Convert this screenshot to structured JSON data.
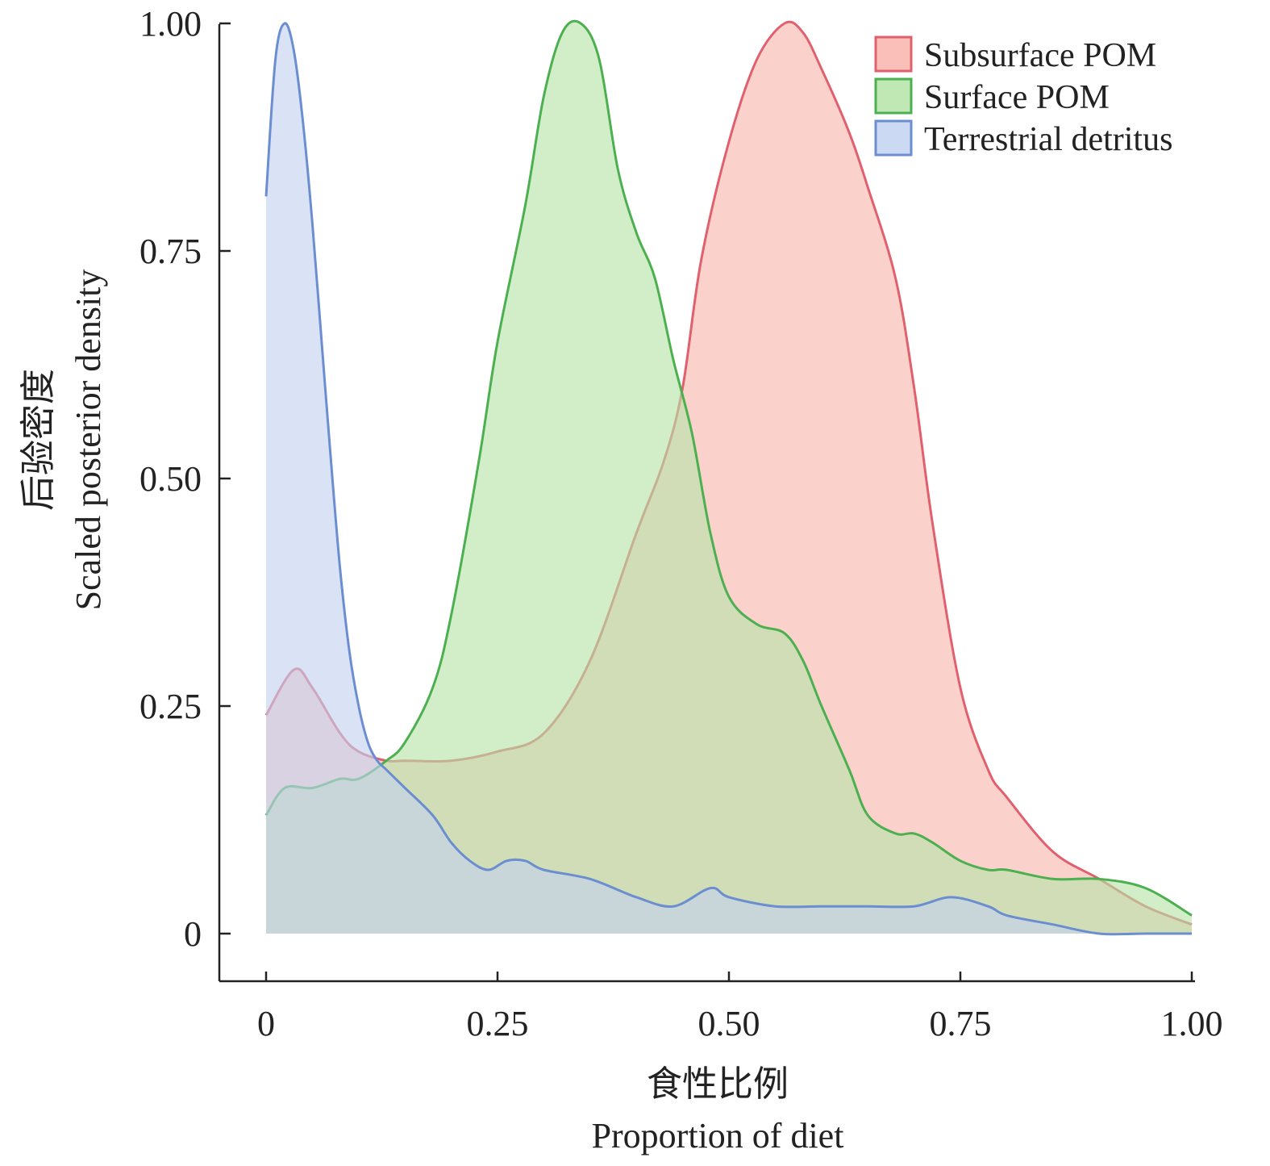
{
  "chart_data": {
    "type": "area",
    "title": "",
    "xlabel_cn": "食性比例",
    "xlabel": "Proportion of diet",
    "ylabel_cn": "后验密度",
    "ylabel": "Scaled posterior density",
    "xlim": [
      0,
      1
    ],
    "ylim": [
      0,
      1
    ],
    "x_ticks": [
      0,
      0.25,
      0.5,
      0.75,
      1.0
    ],
    "x_tick_labels": [
      "0",
      "0.25",
      "0.50",
      "0.75",
      "1.00"
    ],
    "y_ticks": [
      0,
      0.25,
      0.5,
      0.75,
      1.0
    ],
    "y_tick_labels": [
      "0",
      "0.25",
      "0.50",
      "0.75",
      "1.00"
    ],
    "grid": false,
    "legend_position": "top-right",
    "series": [
      {
        "name": "Subsurface POM",
        "color": "#e0606e",
        "fill": "#f9b4ad",
        "x": [
          0,
          0.03,
          0.05,
          0.08,
          0.1,
          0.13,
          0.15,
          0.2,
          0.25,
          0.3,
          0.35,
          0.4,
          0.43,
          0.45,
          0.47,
          0.5,
          0.53,
          0.56,
          0.58,
          0.6,
          0.63,
          0.65,
          0.68,
          0.7,
          0.72,
          0.75,
          0.78,
          0.8,
          0.85,
          0.9,
          0.95,
          1.0
        ],
        "y": [
          0.24,
          0.29,
          0.27,
          0.22,
          0.2,
          0.19,
          0.19,
          0.19,
          0.2,
          0.22,
          0.3,
          0.44,
          0.52,
          0.6,
          0.74,
          0.87,
          0.96,
          1.0,
          0.99,
          0.95,
          0.88,
          0.82,
          0.72,
          0.6,
          0.45,
          0.27,
          0.18,
          0.15,
          0.09,
          0.06,
          0.03,
          0.01
        ]
      },
      {
        "name": "Surface POM",
        "color": "#4cb050",
        "fill": "#b5e4a8",
        "x": [
          0,
          0.02,
          0.05,
          0.08,
          0.1,
          0.13,
          0.15,
          0.18,
          0.2,
          0.23,
          0.25,
          0.28,
          0.3,
          0.32,
          0.34,
          0.36,
          0.38,
          0.4,
          0.42,
          0.44,
          0.46,
          0.48,
          0.5,
          0.53,
          0.56,
          0.58,
          0.6,
          0.63,
          0.65,
          0.68,
          0.7,
          0.72,
          0.75,
          0.78,
          0.8,
          0.85,
          0.9,
          0.95,
          1.0
        ],
        "y": [
          0.13,
          0.16,
          0.16,
          0.17,
          0.17,
          0.19,
          0.21,
          0.27,
          0.35,
          0.52,
          0.65,
          0.8,
          0.92,
          0.99,
          1.0,
          0.96,
          0.84,
          0.77,
          0.72,
          0.63,
          0.55,
          0.44,
          0.37,
          0.34,
          0.33,
          0.3,
          0.25,
          0.18,
          0.13,
          0.11,
          0.11,
          0.1,
          0.08,
          0.07,
          0.07,
          0.06,
          0.06,
          0.05,
          0.02
        ]
      },
      {
        "name": "Terrestrial detritus",
        "color": "#6b8ed0",
        "fill": "#c3d2f0",
        "x": [
          0,
          0.01,
          0.02,
          0.03,
          0.04,
          0.05,
          0.06,
          0.07,
          0.08,
          0.09,
          0.1,
          0.11,
          0.12,
          0.13,
          0.15,
          0.18,
          0.2,
          0.22,
          0.24,
          0.26,
          0.28,
          0.3,
          0.35,
          0.4,
          0.44,
          0.48,
          0.5,
          0.55,
          0.6,
          0.65,
          0.7,
          0.74,
          0.78,
          0.8,
          0.85,
          0.9,
          0.95,
          1.0
        ],
        "y": [
          0.81,
          0.96,
          1.0,
          0.97,
          0.89,
          0.78,
          0.65,
          0.52,
          0.4,
          0.31,
          0.25,
          0.21,
          0.19,
          0.18,
          0.16,
          0.13,
          0.1,
          0.08,
          0.07,
          0.08,
          0.08,
          0.07,
          0.06,
          0.04,
          0.03,
          0.05,
          0.04,
          0.03,
          0.03,
          0.03,
          0.03,
          0.04,
          0.03,
          0.02,
          0.01,
          0.0,
          0.0,
          0.0
        ]
      }
    ]
  }
}
